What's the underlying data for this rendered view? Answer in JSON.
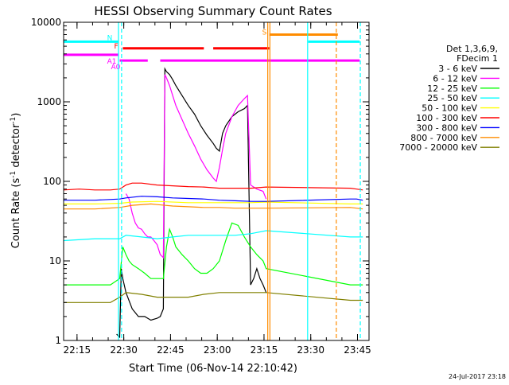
{
  "chart_data": {
    "type": "line",
    "title": "HESSI Observing Summary Count Rates",
    "xlabel": "Start Time (06-Nov-14 22:10:42)",
    "ylabel": "Count Rate (s⁻¹ detector⁻¹)",
    "ylabel_main": "Count Rate (s",
    "ylabel_sup1": "-1",
    "ylabel_mid": " detector",
    "ylabel_sup2": "-1",
    "ylabel_end": ")",
    "footer": "24-Jul-2017 23:18",
    "x_unit": "minutes after 22:10:42",
    "xlim": [
      0,
      98
    ],
    "ylim": [
      1,
      10000
    ],
    "yscale": "log",
    "x_ticks": [
      {
        "label": "22:15",
        "value": 4.3
      },
      {
        "label": "22:30",
        "value": 19.3
      },
      {
        "label": "22:45",
        "value": 34.3
      },
      {
        "label": "23:00",
        "value": 49.3
      },
      {
        "label": "23:15",
        "value": 64.3
      },
      {
        "label": "23:30",
        "value": 79.3
      },
      {
        "label": "23:45",
        "value": 94.3
      }
    ],
    "y_ticks": [
      {
        "label": "1",
        "value": 1
      },
      {
        "label": "10",
        "value": 10
      },
      {
        "label": "100",
        "value": 100
      },
      {
        "label": "1000",
        "value": 1000
      },
      {
        "label": "10000",
        "value": 10000
      }
    ],
    "legend": {
      "position": "right",
      "header": [
        "Det 1,3,6,9,",
        "FDecim 1"
      ]
    },
    "series": [
      {
        "name": "3 - 6 keV",
        "color": "#000000",
        "points": [
          [
            17,
            1.2
          ],
          [
            18,
            1.1
          ],
          [
            18.5,
            8
          ],
          [
            19,
            6
          ],
          [
            20,
            4
          ],
          [
            22,
            2.5
          ],
          [
            24,
            2
          ],
          [
            26,
            2
          ],
          [
            28,
            1.8
          ],
          [
            30,
            1.9
          ],
          [
            31,
            2
          ],
          [
            32,
            2.5
          ],
          [
            32.5,
            2600
          ],
          [
            33,
            2400
          ],
          [
            34,
            2200
          ],
          [
            35,
            1900
          ],
          [
            36,
            1600
          ],
          [
            38,
            1200
          ],
          [
            40,
            900
          ],
          [
            42,
            700
          ],
          [
            44,
            500
          ],
          [
            46,
            380
          ],
          [
            48,
            300
          ],
          [
            49,
            260
          ],
          [
            50,
            240
          ],
          [
            51,
            400
          ],
          [
            52,
            500
          ],
          [
            54,
            650
          ],
          [
            56,
            750
          ],
          [
            58,
            820
          ],
          [
            59,
            900
          ],
          [
            60,
            5
          ],
          [
            61,
            6
          ],
          [
            62,
            8
          ],
          [
            63,
            6
          ],
          [
            64,
            5
          ],
          [
            65,
            4
          ]
        ]
      },
      {
        "name": "6 - 12 keV",
        "color": "#ff00ff",
        "points": [
          [
            20,
            70
          ],
          [
            21,
            60
          ],
          [
            22,
            40
          ],
          [
            23,
            30
          ],
          [
            24,
            26
          ],
          [
            25,
            25
          ],
          [
            26,
            22
          ],
          [
            27,
            20
          ],
          [
            28,
            20
          ],
          [
            29,
            18
          ],
          [
            30,
            16
          ],
          [
            31,
            12
          ],
          [
            32,
            11
          ],
          [
            32.5,
            2200
          ],
          [
            33,
            2000
          ],
          [
            34,
            1600
          ],
          [
            35,
            1200
          ],
          [
            36,
            900
          ],
          [
            38,
            600
          ],
          [
            40,
            400
          ],
          [
            42,
            280
          ],
          [
            44,
            190
          ],
          [
            46,
            140
          ],
          [
            48,
            110
          ],
          [
            49,
            100
          ],
          [
            50,
            150
          ],
          [
            51,
            250
          ],
          [
            52,
            400
          ],
          [
            54,
            650
          ],
          [
            56,
            900
          ],
          [
            58,
            1100
          ],
          [
            59,
            1200
          ],
          [
            60,
            90
          ],
          [
            61,
            85
          ],
          [
            62,
            80
          ],
          [
            64,
            75
          ],
          [
            65,
            60
          ]
        ]
      },
      {
        "name": "12 - 25 keV",
        "color": "#00ff00",
        "points": [
          [
            0,
            5
          ],
          [
            5,
            5
          ],
          [
            10,
            5
          ],
          [
            15,
            5
          ],
          [
            18,
            6
          ],
          [
            19,
            15
          ],
          [
            20,
            12
          ],
          [
            21,
            10
          ],
          [
            22,
            9
          ],
          [
            24,
            8
          ],
          [
            26,
            7
          ],
          [
            28,
            6
          ],
          [
            30,
            6
          ],
          [
            32,
            6
          ],
          [
            33,
            15
          ],
          [
            34,
            25
          ],
          [
            35,
            20
          ],
          [
            36,
            15
          ],
          [
            38,
            12
          ],
          [
            40,
            10
          ],
          [
            42,
            8
          ],
          [
            44,
            7
          ],
          [
            46,
            7
          ],
          [
            48,
            8
          ],
          [
            50,
            10
          ],
          [
            52,
            18
          ],
          [
            54,
            30
          ],
          [
            56,
            28
          ],
          [
            58,
            20
          ],
          [
            60,
            15
          ],
          [
            62,
            12
          ],
          [
            64,
            10
          ],
          [
            65,
            8
          ],
          [
            92,
            5
          ],
          [
            94,
            5
          ],
          [
            96,
            5
          ]
        ]
      },
      {
        "name": "25 - 50 keV",
        "color": "#00ffff",
        "points": [
          [
            0,
            18
          ],
          [
            10,
            19
          ],
          [
            18,
            19
          ],
          [
            20,
            21
          ],
          [
            25,
            20
          ],
          [
            30,
            19
          ],
          [
            35,
            20
          ],
          [
            40,
            21
          ],
          [
            45,
            21
          ],
          [
            50,
            21
          ],
          [
            55,
            21
          ],
          [
            60,
            22
          ],
          [
            65,
            24
          ],
          [
            92,
            20
          ],
          [
            94,
            20
          ],
          [
            96,
            20
          ]
        ]
      },
      {
        "name": "50 - 100 keV",
        "color": "#ffff00",
        "points": [
          [
            0,
            52
          ],
          [
            10,
            52
          ],
          [
            18,
            53
          ],
          [
            22,
            55
          ],
          [
            30,
            56
          ],
          [
            40,
            54
          ],
          [
            50,
            54
          ],
          [
            60,
            54
          ],
          [
            65,
            55
          ],
          [
            92,
            52
          ],
          [
            96,
            52
          ]
        ]
      },
      {
        "name": "100 - 300 keV",
        "color": "#ff0000",
        "points": [
          [
            0,
            78
          ],
          [
            5,
            80
          ],
          [
            10,
            78
          ],
          [
            15,
            78
          ],
          [
            18,
            80
          ],
          [
            20,
            90
          ],
          [
            22,
            95
          ],
          [
            25,
            95
          ],
          [
            30,
            90
          ],
          [
            35,
            88
          ],
          [
            40,
            86
          ],
          [
            45,
            85
          ],
          [
            50,
            82
          ],
          [
            55,
            82
          ],
          [
            60,
            82
          ],
          [
            65,
            85
          ],
          [
            92,
            82
          ],
          [
            94,
            80
          ],
          [
            96,
            78
          ]
        ]
      },
      {
        "name": "300 - 800 keV",
        "color": "#0000ff",
        "points": [
          [
            0,
            58
          ],
          [
            10,
            58
          ],
          [
            18,
            60
          ],
          [
            20,
            62
          ],
          [
            25,
            65
          ],
          [
            30,
            64
          ],
          [
            35,
            62
          ],
          [
            40,
            61
          ],
          [
            45,
            60
          ],
          [
            50,
            58
          ],
          [
            55,
            57
          ],
          [
            60,
            56
          ],
          [
            65,
            56
          ],
          [
            92,
            60
          ],
          [
            94,
            60
          ],
          [
            96,
            58
          ]
        ]
      },
      {
        "name": "800 - 7000 keV",
        "color": "#ff8c00",
        "points": [
          [
            0,
            45
          ],
          [
            10,
            45
          ],
          [
            18,
            47
          ],
          [
            22,
            50
          ],
          [
            28,
            52
          ],
          [
            30,
            51
          ],
          [
            35,
            49
          ],
          [
            40,
            48
          ],
          [
            45,
            47
          ],
          [
            50,
            47
          ],
          [
            55,
            46
          ],
          [
            60,
            46
          ],
          [
            65,
            46
          ],
          [
            92,
            47
          ],
          [
            94,
            46
          ],
          [
            96,
            45
          ]
        ]
      },
      {
        "name": "7000 - 20000 keV",
        "color": "#808000",
        "points": [
          [
            0,
            3
          ],
          [
            5,
            3
          ],
          [
            10,
            3
          ],
          [
            15,
            3
          ],
          [
            18,
            3.5
          ],
          [
            20,
            4
          ],
          [
            25,
            3.8
          ],
          [
            30,
            3.5
          ],
          [
            35,
            3.5
          ],
          [
            40,
            3.5
          ],
          [
            45,
            3.8
          ],
          [
            50,
            4
          ],
          [
            55,
            4
          ],
          [
            60,
            4
          ],
          [
            65,
            4
          ],
          [
            92,
            3.2
          ],
          [
            96,
            3.2
          ]
        ]
      }
    ],
    "flag_lines": [
      {
        "label": "N",
        "color": "#00ffff",
        "y": 5700,
        "segments": [
          [
            0,
            17.5
          ],
          [
            78.5,
            95
          ]
        ]
      },
      {
        "label": "F",
        "color": "#ff0000",
        "y": 4700,
        "segments": [
          [
            19,
            45
          ],
          [
            48,
            66
          ]
        ]
      },
      {
        "label": "S",
        "color": "#ff8c00",
        "y": 7000,
        "segments": [
          [
            66,
            88
          ]
        ]
      },
      {
        "label": "A1",
        "color": "#ff00ff",
        "y": 3900,
        "segments": [
          [
            0,
            17.5
          ]
        ]
      },
      {
        "label": "A0",
        "color": "#ff00ff",
        "y": 3300,
        "segments": [
          [
            18,
            27
          ],
          [
            31,
            95
          ]
        ]
      }
    ],
    "vertical_markers": [
      {
        "x": 17.6,
        "color": "#00ffff",
        "style": "solid"
      },
      {
        "x": 18.6,
        "color": "#00ffff",
        "style": "dashed"
      },
      {
        "x": 65.5,
        "color": "#ff8c00",
        "style": "solid"
      },
      {
        "x": 66.2,
        "color": "#ff8c00",
        "style": "solid"
      },
      {
        "x": 78.3,
        "color": "#00ffff",
        "style": "solid"
      },
      {
        "x": 87.5,
        "color": "#ff8c00",
        "style": "dashed"
      },
      {
        "x": 95.2,
        "color": "#00ffff",
        "style": "dashed"
      }
    ]
  }
}
